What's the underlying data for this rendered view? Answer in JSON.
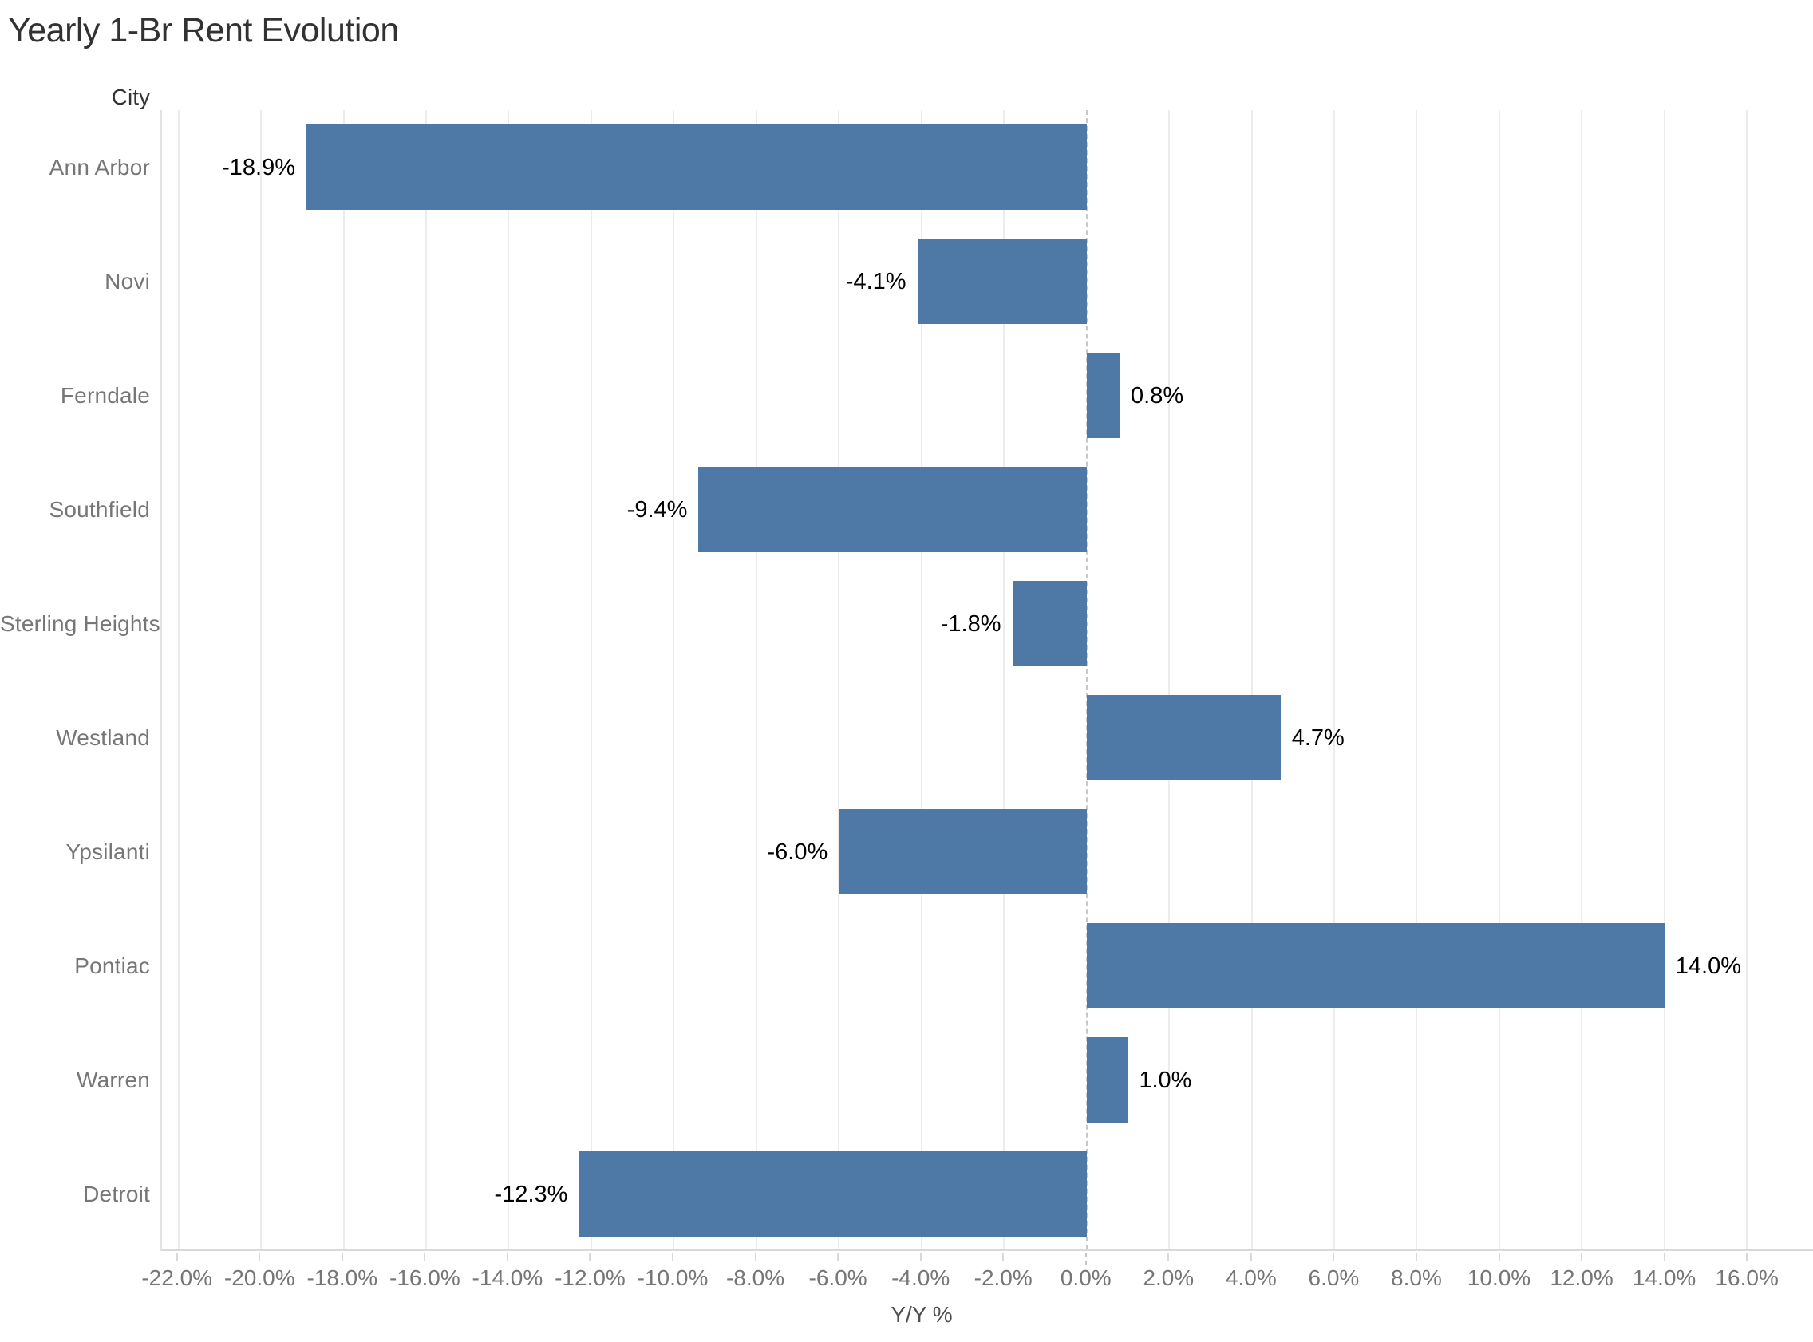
{
  "title": "Yearly 1-Br Rent Evolution",
  "row_header": "City",
  "axis": {
    "label": "Y/Y %"
  },
  "colors": {
    "bar": "#4e79a7",
    "title_text": "#323232",
    "header_text": "#333333",
    "category_text": "#767676",
    "tick_text": "#767676",
    "value_label_text": "#000000",
    "gridline": "#ececec",
    "zero_line": "#c8c8c8",
    "axis_line": "#d9d9d9",
    "background": "#ffffff"
  },
  "chart_data": {
    "type": "bar",
    "orientation": "horizontal",
    "title": "Yearly 1-Br Rent Evolution",
    "xlabel": "Y/Y %",
    "ylabel": "City",
    "categories": [
      "Ann Arbor",
      "Novi",
      "Ferndale",
      "Southfield",
      "Sterling Heights",
      "Westland",
      "Ypsilanti",
      "Pontiac",
      "Warren",
      "Detroit"
    ],
    "values": [
      -18.9,
      -4.1,
      0.8,
      -9.4,
      -1.8,
      4.7,
      -6.0,
      14.0,
      1.0,
      -12.3
    ],
    "value_labels": [
      "-18.9%",
      "-4.1%",
      "0.8%",
      "-9.4%",
      "-1.8%",
      "4.7%",
      "-6.0%",
      "14.0%",
      "1.0%",
      "-12.3%"
    ],
    "xlim": [
      -22.4,
      17.6
    ],
    "ticks": [
      -22,
      -20,
      -18,
      -16,
      -14,
      -12,
      -10,
      -8,
      -6,
      -4,
      -2,
      0,
      2,
      4,
      6,
      8,
      10,
      12,
      14,
      16
    ],
    "tick_labels": [
      "-22.0%",
      "-20.0%",
      "-18.0%",
      "-16.0%",
      "-14.0%",
      "-12.0%",
      "-10.0%",
      "-8.0%",
      "-6.0%",
      "-4.0%",
      "-2.0%",
      "0.0%",
      "2.0%",
      "4.0%",
      "6.0%",
      "8.0%",
      "10.0%",
      "12.0%",
      "14.0%",
      "16.0%"
    ],
    "grid": true,
    "zero_line_dashed": true,
    "legend": "none",
    "bar_color": "#4e79a7"
  }
}
